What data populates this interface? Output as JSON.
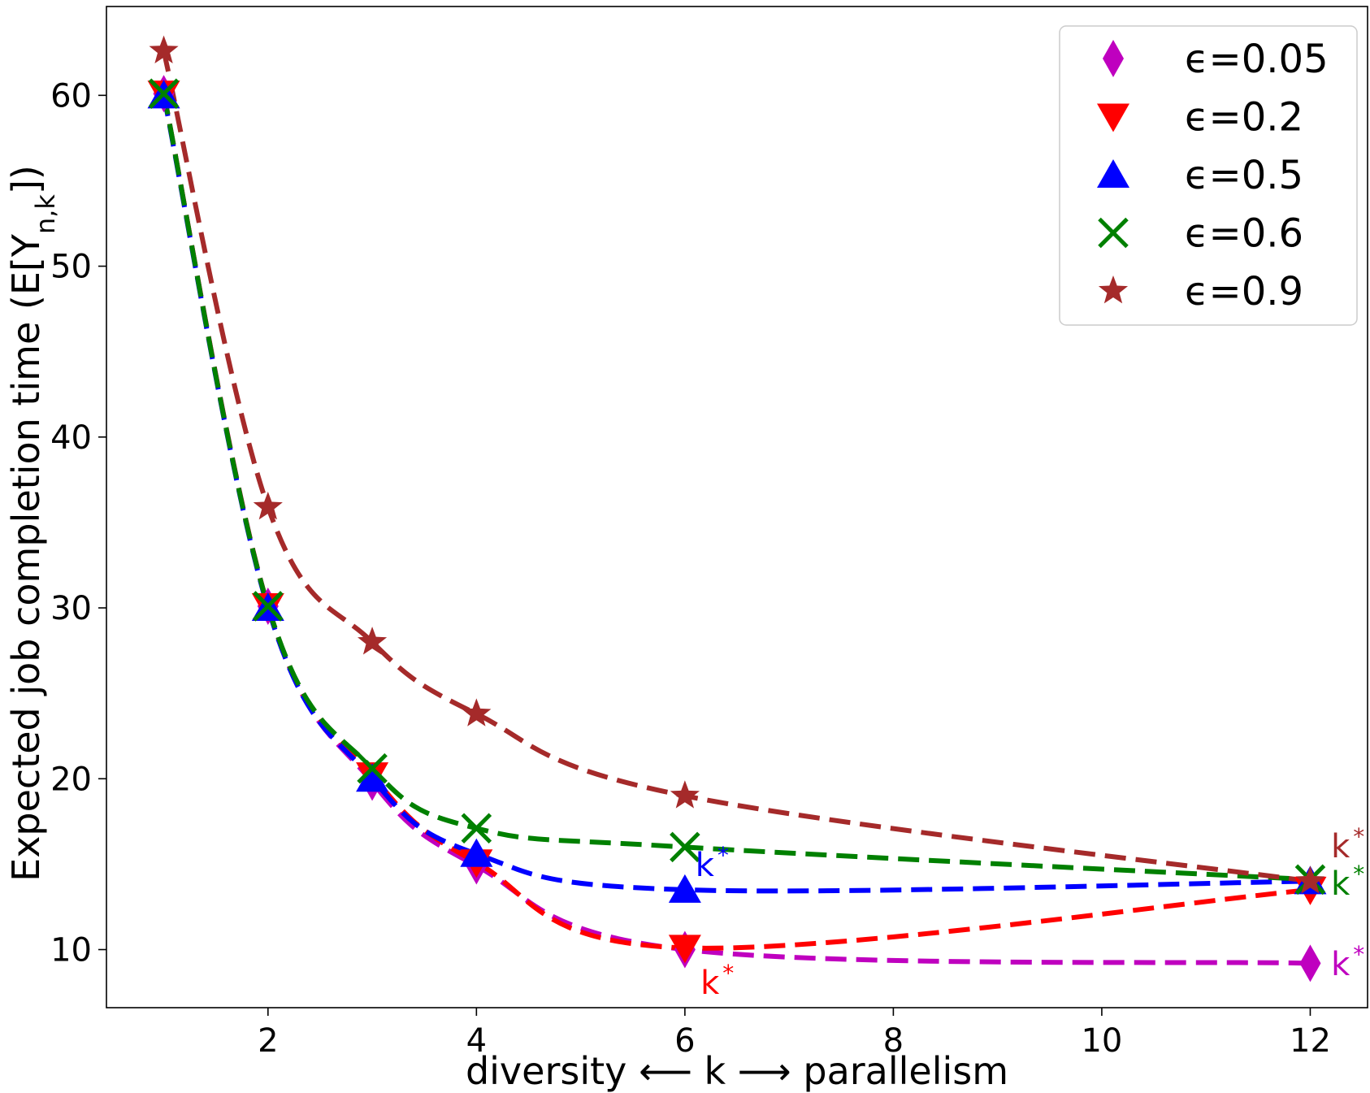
{
  "chart_data": {
    "type": "line",
    "title": "",
    "xlabel": "diversity ⟵ k ⟶ parallelism",
    "ylabel": "Expected job completion time (E[Y",
    "ylabel_sub": "n,k",
    "ylabel_end": "])",
    "xlim": [
      0.45,
      12.55
    ],
    "ylim": [
      6.6,
      65.2
    ],
    "xticks": [
      2,
      4,
      6,
      8,
      10,
      12
    ],
    "yticks": [
      10,
      20,
      30,
      40,
      50,
      60
    ],
    "legend_position": "top-right",
    "series": [
      {
        "name": "ϵ=0.05",
        "color": "#bf00bf",
        "marker": "diamond",
        "x": [
          1,
          2,
          3,
          4,
          6,
          12
        ],
        "values": [
          60.1,
          30.1,
          19.8,
          14.9,
          10.0,
          9.2
        ]
      },
      {
        "name": "ϵ=0.2",
        "color": "#ff0000",
        "marker": "triangle-down",
        "x": [
          1,
          2,
          3,
          4,
          6,
          12
        ],
        "values": [
          60.1,
          30.1,
          20.2,
          15.1,
          10.1,
          13.5
        ]
      },
      {
        "name": "ϵ=0.5",
        "color": "#0000ff",
        "marker": "triangle-up",
        "x": [
          1,
          2,
          3,
          4,
          6,
          12
        ],
        "values": [
          60.0,
          30.0,
          20.0,
          15.6,
          13.5,
          14.0
        ]
      },
      {
        "name": "ϵ=0.6",
        "color": "#008000",
        "marker": "x",
        "x": [
          1,
          2,
          3,
          4,
          6,
          12
        ],
        "values": [
          60.1,
          30.1,
          20.6,
          17.1,
          16.0,
          14.1
        ]
      },
      {
        "name": "ϵ=0.9",
        "color": "#a52a2a",
        "marker": "star",
        "x": [
          1,
          2,
          3,
          4,
          6,
          12
        ],
        "values": [
          62.6,
          35.9,
          28.0,
          23.8,
          19.0,
          14.0
        ]
      }
    ],
    "annotations": [
      {
        "text": "k",
        "sup": "*",
        "color": "#0000ff",
        "x": 6.1,
        "y": 14.3
      },
      {
        "text": "k",
        "sup": "*",
        "color": "#ff0000",
        "x": 6.15,
        "y": 7.4
      },
      {
        "text": "k",
        "sup": "*",
        "color": "#bf00bf",
        "x": 12.2,
        "y": 8.5
      },
      {
        "text": "k",
        "sup": "*",
        "color": "#008000",
        "x": 12.2,
        "y": 13.2
      },
      {
        "text": "k",
        "sup": "*",
        "color": "#a52a2a",
        "x": 12.2,
        "y": 15.4
      }
    ]
  }
}
